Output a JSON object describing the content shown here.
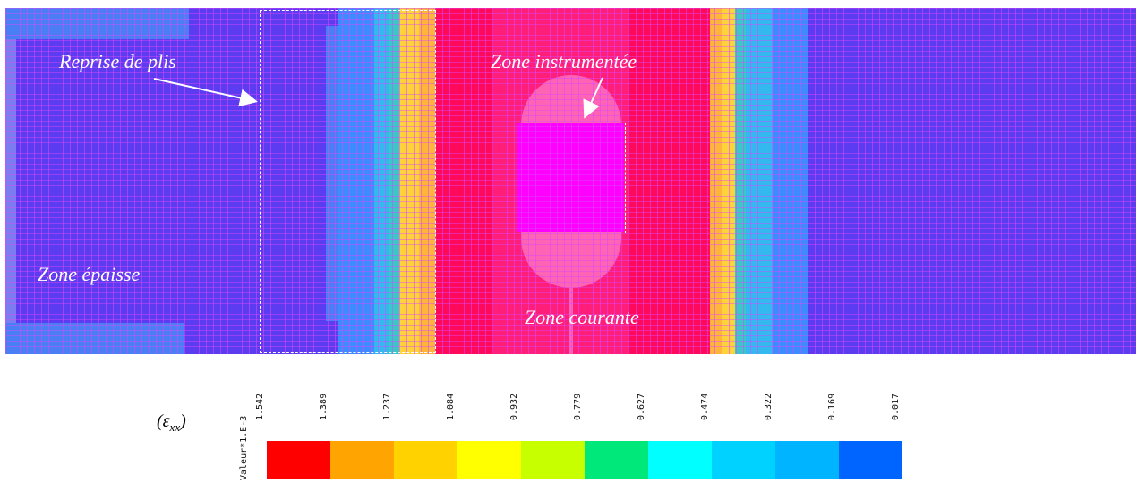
{
  "labels": {
    "reprise_de_plis": "Reprise de plis",
    "zone_epaisse": "Zone épaisse",
    "zone_instrumentee": "Zone instrumentée",
    "zone_courante": "Zone courante"
  },
  "legend": {
    "quantity_base": "(ε",
    "quantity_sub": "xx",
    "quantity_close": ")",
    "unit": "Valeur*1.E-3",
    "ticks": [
      "1.542",
      "1.389",
      "1.237",
      "1.084",
      "0.932",
      "0.779",
      "0.627",
      "0.474",
      "0.322",
      "0.169",
      "0.017"
    ],
    "colors": [
      "#ff0000",
      "#ffa400",
      "#ffd200",
      "#ffff00",
      "#c8ff00",
      "#00e87a",
      "#00ffff",
      "#00d2ff",
      "#00b4ff",
      "#0064ff"
    ]
  },
  "colors": {
    "background_zone": "#5b3cf0",
    "mesh_line": "#dc46ff",
    "central_band": "#ff0a5a",
    "instrumented_zone": "#ff00ff",
    "gauge_patch": "#ff64b4"
  }
}
